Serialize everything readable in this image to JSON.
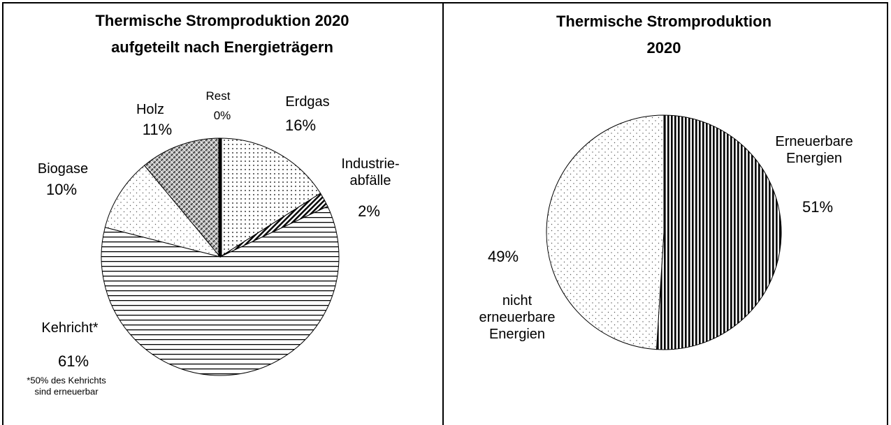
{
  "chart_data": [
    {
      "type": "pie",
      "title": "Thermische Stromproduktion 2020\naufgeteilt nach Energieträgern",
      "categories": [
        "Erdgas",
        "Industrie-\nabfälle",
        "Kehricht*",
        "Biogase",
        "Holz",
        "Rest"
      ],
      "values": [
        16,
        2,
        61,
        10,
        11,
        0
      ],
      "value_labels": [
        "16%",
        "2%",
        "61%",
        "10%",
        "11%",
        "0%"
      ],
      "patterns": [
        "dots",
        "diagonal",
        "hstripes",
        "dots-sparse",
        "crosshatch",
        "solid"
      ],
      "annotation": "*50% des Kehrichts\nsind erneuerbar"
    },
    {
      "type": "pie",
      "title": "Thermische Stromproduktion 2020",
      "categories": [
        "Erneuerbare\nEnergien",
        "nicht\nerneuerbare\nEnergien"
      ],
      "values": [
        51,
        49
      ],
      "value_labels": [
        "51%",
        "49%"
      ],
      "patterns": [
        "vstripes",
        "dots-sparse"
      ]
    }
  ]
}
